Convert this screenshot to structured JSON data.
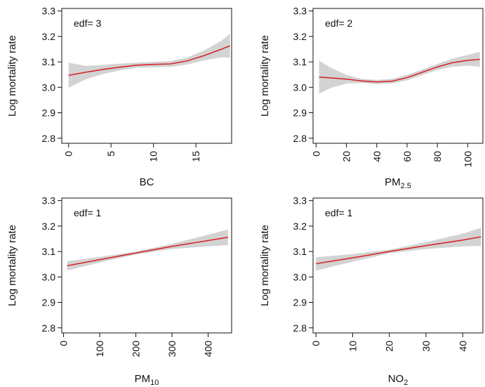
{
  "figure": {
    "background": "#ffffff",
    "band_color": "#d3d3d3",
    "line_color": "#d6262b",
    "axis_color": "#111111"
  },
  "chart_data": [
    {
      "type": "line",
      "panel": "top-left",
      "annotation": "edf= 3",
      "xlabel": "BC",
      "ylabel": "Log mortality rate",
      "xlim": [
        -0.8,
        19.2
      ],
      "ylim": [
        2.78,
        3.31
      ],
      "xticks": [
        0,
        5,
        10,
        15
      ],
      "xtick_labels": [
        "0",
        "5",
        "10",
        "15"
      ],
      "yticks": [
        2.8,
        2.9,
        3.0,
        3.1,
        3.2,
        3.3
      ],
      "ytick_labels": [
        "2.8",
        "2.9",
        "3.0",
        "3.1",
        "3.2",
        "3.3"
      ],
      "grid": false,
      "series": [
        {
          "x": [
            0,
            2,
            4,
            6,
            8,
            10,
            12,
            14,
            16,
            18,
            19
          ],
          "y": [
            3.047,
            3.059,
            3.07,
            3.079,
            3.087,
            3.09,
            3.092,
            3.104,
            3.125,
            3.15,
            3.163
          ],
          "lower": [
            2.998,
            3.031,
            3.052,
            3.066,
            3.077,
            3.079,
            3.08,
            3.09,
            3.106,
            3.118,
            3.117
          ],
          "upper": [
            3.097,
            3.084,
            3.088,
            3.093,
            3.097,
            3.1,
            3.103,
            3.118,
            3.145,
            3.183,
            3.21
          ]
        }
      ]
    },
    {
      "type": "line",
      "panel": "top-right",
      "annotation": "edf= 2",
      "xlabel": "PM",
      "xlabel_sub": "2.5",
      "ylabel": "Log mortality rate",
      "xlim": [
        -2,
        110
      ],
      "ylim": [
        2.78,
        3.31
      ],
      "xticks": [
        0,
        20,
        40,
        60,
        80,
        100
      ],
      "xtick_labels": [
        "0",
        "20",
        "40",
        "60",
        "80",
        "100"
      ],
      "yticks": [
        2.8,
        2.9,
        3.0,
        3.1,
        3.2,
        3.3
      ],
      "ytick_labels": [
        "2.8",
        "2.9",
        "3.0",
        "3.1",
        "3.2",
        "3.3"
      ],
      "grid": false,
      "series": [
        {
          "x": [
            2,
            10,
            20,
            30,
            40,
            50,
            60,
            70,
            80,
            90,
            100,
            108
          ],
          "y": [
            3.04,
            3.037,
            3.032,
            3.025,
            3.021,
            3.024,
            3.038,
            3.059,
            3.08,
            3.097,
            3.106,
            3.11
          ],
          "lower": [
            2.975,
            2.998,
            3.015,
            3.017,
            3.013,
            3.015,
            3.027,
            3.048,
            3.068,
            3.081,
            3.085,
            3.081
          ],
          "upper": [
            3.105,
            3.076,
            3.049,
            3.033,
            3.029,
            3.033,
            3.049,
            3.07,
            3.092,
            3.113,
            3.127,
            3.139
          ]
        }
      ]
    },
    {
      "type": "line",
      "panel": "bottom-left",
      "annotation": "edf= 1",
      "xlabel": "PM",
      "xlabel_sub": "10",
      "ylabel": "Log mortality rate",
      "xlim": [
        -5,
        465
      ],
      "ylim": [
        2.78,
        3.31
      ],
      "xticks": [
        0,
        100,
        200,
        300,
        400
      ],
      "xtick_labels": [
        "0",
        "100",
        "200",
        "300",
        "400"
      ],
      "yticks": [
        2.8,
        2.9,
        3.0,
        3.1,
        3.2,
        3.3
      ],
      "ytick_labels": [
        "2.8",
        "2.9",
        "3.0",
        "3.1",
        "3.2",
        "3.3"
      ],
      "grid": false,
      "series": [
        {
          "x": [
            10,
            100,
            200,
            300,
            400,
            455
          ],
          "y": [
            3.044,
            3.068,
            3.094,
            3.12,
            3.143,
            3.156
          ],
          "lower": [
            3.025,
            3.057,
            3.088,
            3.11,
            3.12,
            3.125
          ],
          "upper": [
            3.062,
            3.079,
            3.1,
            3.13,
            3.166,
            3.187
          ]
        }
      ]
    },
    {
      "type": "line",
      "panel": "bottom-right",
      "annotation": "edf= 1",
      "xlabel": "NO",
      "xlabel_sub": "2",
      "ylabel": "Log mortality rate",
      "xlim": [
        -0.8,
        45.5
      ],
      "ylim": [
        2.78,
        3.31
      ],
      "xticks": [
        0,
        10,
        20,
        30,
        40
      ],
      "xtick_labels": [
        "0",
        "10",
        "20",
        "30",
        "40"
      ],
      "yticks": [
        2.8,
        2.9,
        3.0,
        3.1,
        3.2,
        3.3
      ],
      "ytick_labels": [
        "2.8",
        "2.9",
        "3.0",
        "3.1",
        "3.2",
        "3.3"
      ],
      "grid": false,
      "series": [
        {
          "x": [
            0,
            10,
            20,
            30,
            40,
            45
          ],
          "y": [
            3.052,
            3.075,
            3.1,
            3.123,
            3.145,
            3.158
          ],
          "lower": [
            3.025,
            3.06,
            3.093,
            3.11,
            3.12,
            3.122
          ],
          "upper": [
            3.077,
            3.09,
            3.107,
            3.137,
            3.17,
            3.193
          ]
        }
      ]
    }
  ]
}
